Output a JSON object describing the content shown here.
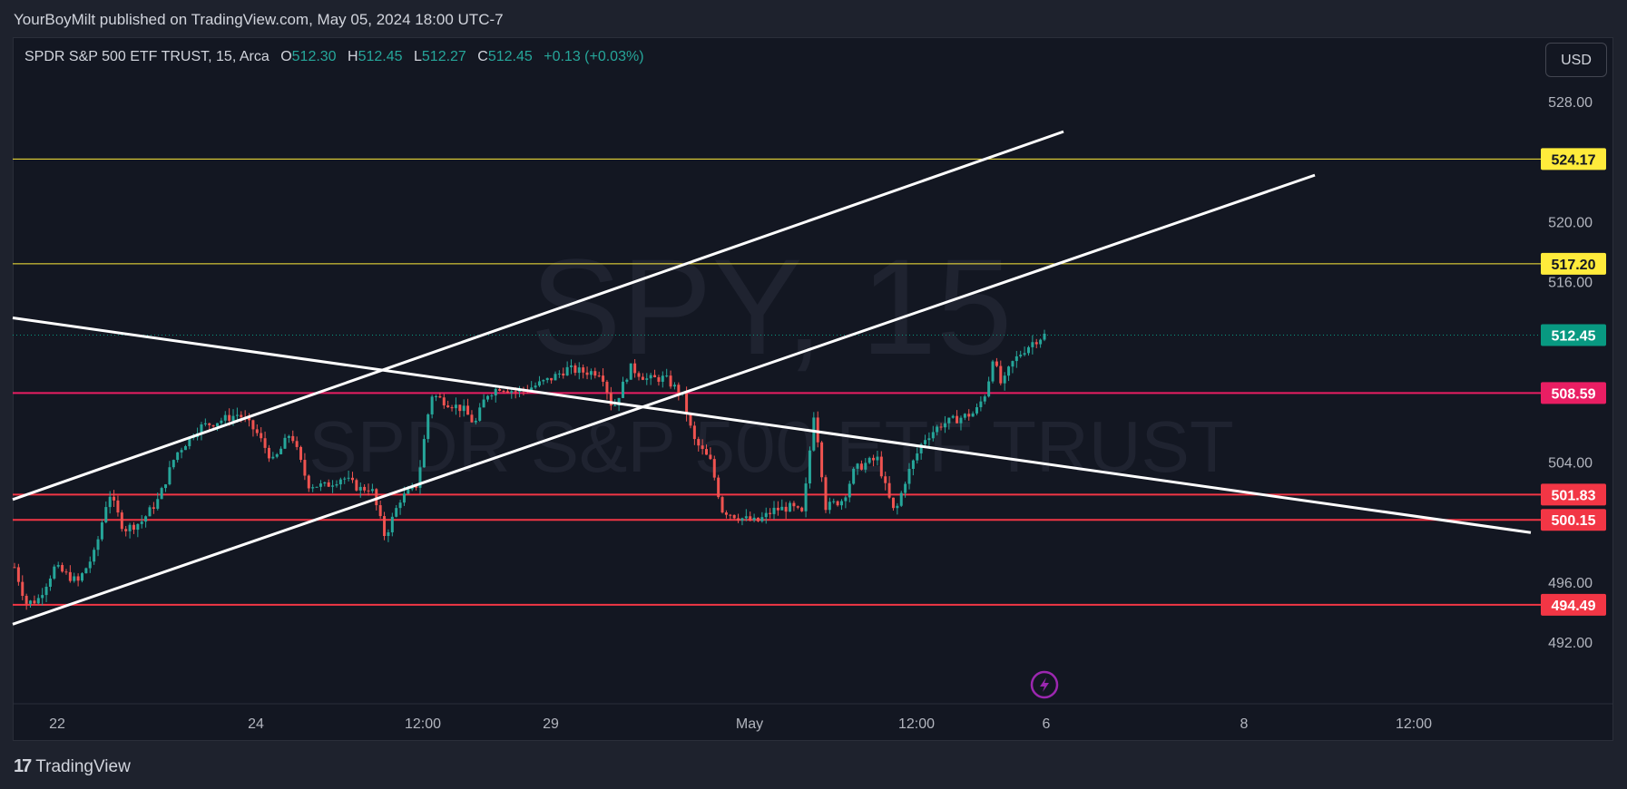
{
  "header": {
    "publish_text": "YourBoyMilt published on TradingView.com, May 05, 2024 18:00 UTC-7"
  },
  "legend": {
    "symbol": "SPDR S&P 500 ETF TRUST, 15, Arca",
    "o_label": "O",
    "o_value": "512.30",
    "h_label": "H",
    "h_value": "512.45",
    "l_label": "L",
    "l_value": "512.27",
    "c_label": "C",
    "c_value": "512.45",
    "change": "+0.13 (+0.03%)"
  },
  "currency_button": "USD",
  "watermark": {
    "ticker": "SPY, 15",
    "name": "SPDR S&P 500 ETF TRUST"
  },
  "footer": {
    "brand": "TradingView",
    "logo_mark": "17"
  },
  "colors": {
    "background": "#131722",
    "up": "#26a69a",
    "down": "#ef5350",
    "yellow": "#ffeb3b",
    "magenta": "#e91e63",
    "red": "#f23645",
    "white": "#ffffff"
  },
  "chart_data": {
    "type": "candlestick",
    "symbol": "SPY",
    "interval": "15",
    "y_axis": {
      "ticks": [
        "528.00",
        "520.00",
        "516.00",
        "504.00",
        "496.00",
        "492.00"
      ],
      "range": [
        488.0,
        530.0
      ]
    },
    "x_axis": {
      "ticks": [
        "22",
        "24",
        "12:00",
        "29",
        "May",
        "12:00",
        "6",
        "8",
        "12:00"
      ]
    },
    "last_price": {
      "value": 512.45,
      "label": "512.45",
      "color": "#089981"
    },
    "horizontal_levels": [
      {
        "value": 524.17,
        "label": "524.17",
        "color": "#ffeb3b"
      },
      {
        "value": 517.2,
        "label": "517.20",
        "color": "#ffeb3b"
      },
      {
        "value": 508.59,
        "label": "508.59",
        "color": "#e91e63"
      },
      {
        "value": 501.83,
        "label": "501.83",
        "color": "#f23645"
      },
      {
        "value": 500.15,
        "label": "500.15",
        "color": "#f23645"
      },
      {
        "value": 494.49,
        "label": "494.49",
        "color": "#f23645"
      }
    ],
    "trend_lines": [
      {
        "from": {
          "date": "Apr 22",
          "price": 501.5
        },
        "to": {
          "date": "May 6",
          "price": 526.0
        }
      },
      {
        "from": {
          "date": "Apr 22",
          "price": 493.2
        },
        "to": {
          "date": "May 8",
          "price": 523.1
        }
      },
      {
        "from": {
          "date": "Apr 22",
          "price": 513.6
        },
        "to": {
          "date": "May 9",
          "price": 499.3
        }
      }
    ],
    "price_path": [
      [
        0.0,
        497.0
      ],
      [
        0.01,
        494.6
      ],
      [
        0.02,
        494.8
      ],
      [
        0.035,
        497.0
      ],
      [
        0.055,
        496.0
      ],
      [
        0.07,
        498.0
      ],
      [
        0.082,
        502.0
      ],
      [
        0.095,
        499.5
      ],
      [
        0.11,
        500.0
      ],
      [
        0.125,
        501.5
      ],
      [
        0.14,
        504.5
      ],
      [
        0.16,
        506.3
      ],
      [
        0.18,
        506.8
      ],
      [
        0.195,
        507.2
      ],
      [
        0.21,
        506.0
      ],
      [
        0.225,
        504.0
      ],
      [
        0.24,
        506.0
      ],
      [
        0.255,
        502.5
      ],
      [
        0.27,
        502.4
      ],
      [
        0.285,
        503.0
      ],
      [
        0.3,
        502.2
      ],
      [
        0.31,
        502.3
      ],
      [
        0.322,
        499.0
      ],
      [
        0.335,
        501.5
      ],
      [
        0.35,
        502.5
      ],
      [
        0.362,
        508.5
      ],
      [
        0.375,
        508.0
      ],
      [
        0.39,
        507.5
      ],
      [
        0.4,
        506.5
      ],
      [
        0.41,
        508.5
      ],
      [
        0.422,
        509.0
      ],
      [
        0.435,
        508.7
      ],
      [
        0.45,
        509.0
      ],
      [
        0.465,
        509.5
      ],
      [
        0.48,
        510.2
      ],
      [
        0.495,
        510.0
      ],
      [
        0.51,
        510.0
      ],
      [
        0.52,
        507.5
      ],
      [
        0.535,
        510.3
      ],
      [
        0.55,
        509.5
      ],
      [
        0.565,
        509.6
      ],
      [
        0.58,
        508.5
      ],
      [
        0.59,
        505.5
      ],
      [
        0.605,
        504.0
      ],
      [
        0.615,
        500.8
      ],
      [
        0.63,
        500.3
      ],
      [
        0.645,
        500.0
      ],
      [
        0.66,
        500.8
      ],
      [
        0.675,
        501.0
      ],
      [
        0.685,
        500.5
      ],
      [
        0.695,
        507.5
      ],
      [
        0.705,
        501.0
      ],
      [
        0.72,
        501.5
      ],
      [
        0.73,
        503.5
      ],
      [
        0.742,
        504.0
      ],
      [
        0.75,
        504.2
      ],
      [
        0.758,
        502.0
      ],
      [
        0.765,
        500.5
      ],
      [
        0.775,
        503.0
      ],
      [
        0.79,
        505.5
      ],
      [
        0.805,
        506.5
      ],
      [
        0.82,
        506.9
      ],
      [
        0.835,
        507.3
      ],
      [
        0.845,
        508.8
      ],
      [
        0.85,
        511.0
      ],
      [
        0.858,
        509.0
      ],
      [
        0.866,
        510.5
      ],
      [
        0.875,
        511.3
      ],
      [
        0.885,
        512.0
      ],
      [
        0.895,
        512.45
      ]
    ]
  }
}
